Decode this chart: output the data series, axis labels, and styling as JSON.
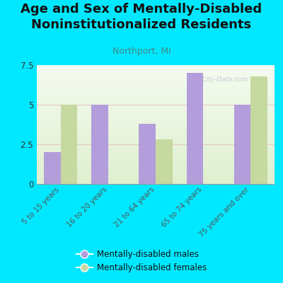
{
  "title": "Age and Sex of Mentally-Disabled\nNoninstitutionalized Residents",
  "subtitle": "Northport, MI",
  "categories": [
    "5 to 15 years",
    "16 to 20 years",
    "21 to 64 years",
    "65 to 74 years",
    "75 years and over"
  ],
  "males": [
    2.0,
    5.0,
    3.8,
    7.0,
    5.0
  ],
  "females": [
    5.0,
    0,
    2.8,
    0,
    6.8
  ],
  "male_color": "#b39ddb",
  "female_color": "#c5d9a0",
  "background_color": "#00e8ff",
  "plot_bg_top": "#f5fbf0",
  "plot_bg_bottom": "#dff0d0",
  "grid_color": "#e8c8c8",
  "ylim": [
    0,
    7.5
  ],
  "yticks": [
    0,
    2.5,
    5,
    7.5
  ],
  "bar_width": 0.35,
  "title_fontsize": 13,
  "subtitle_fontsize": 9,
  "legend_label_males": "Mentally-disabled males",
  "legend_label_females": "Mentally-disabled females",
  "watermark": "  City-Data.com"
}
